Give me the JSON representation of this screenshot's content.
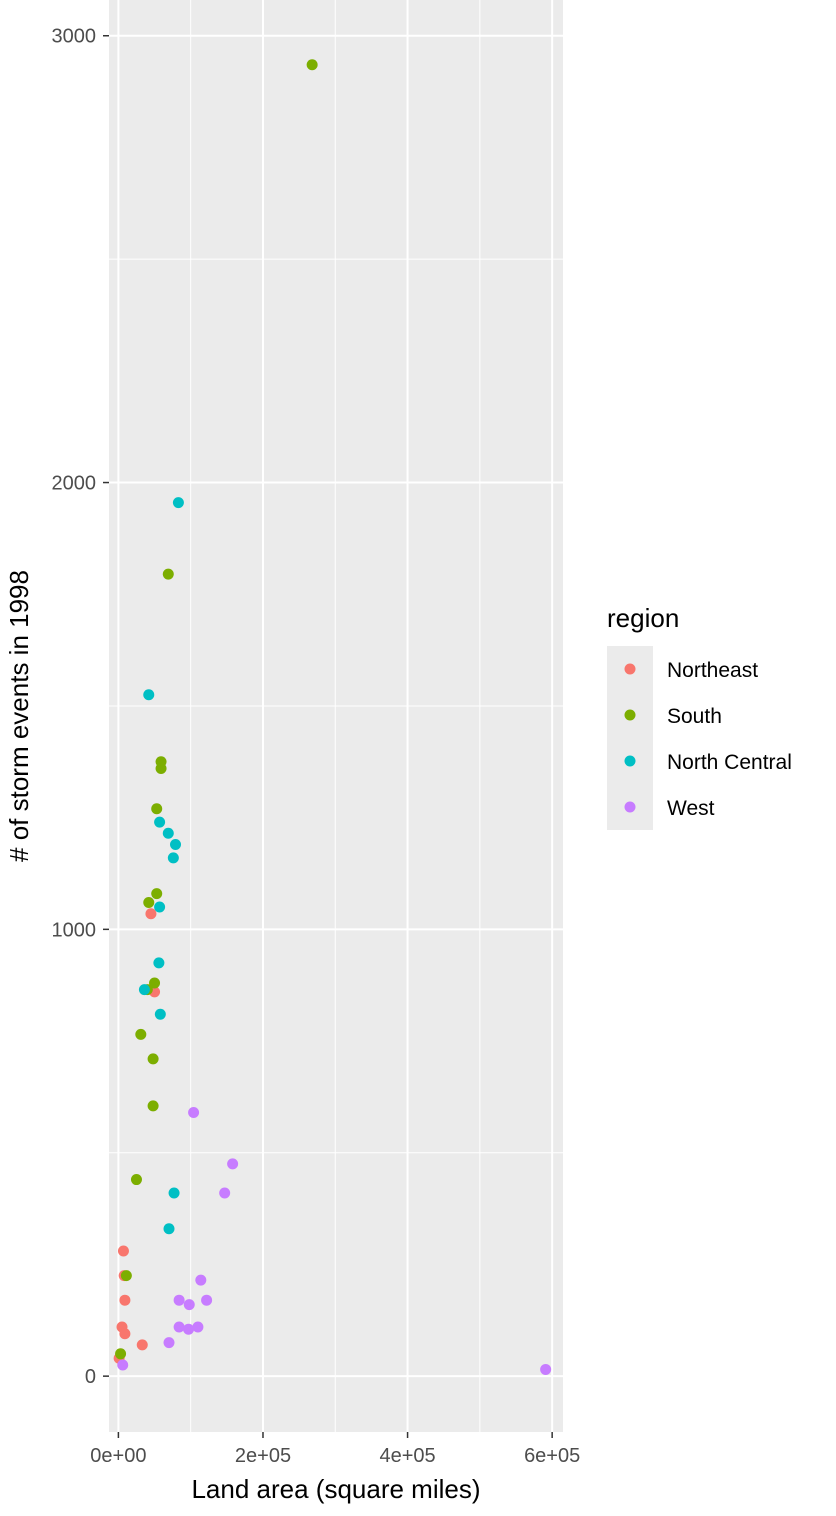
{
  "chart_data": {
    "type": "scatter",
    "title": "",
    "xlabel": "Land area (square miles)",
    "ylabel": "# of storm events in 1998",
    "xlim": [
      -13000,
      615000
    ],
    "ylim": [
      -125,
      3080
    ],
    "x_ticks": [
      0,
      200000,
      400000,
      600000
    ],
    "x_tick_labels": [
      "0e+00",
      "2e+05",
      "4e+05",
      "6e+05"
    ],
    "y_ticks": [
      0,
      1000,
      2000,
      3000
    ],
    "y_tick_labels": [
      "0",
      "1000",
      "2000",
      "3000"
    ],
    "grid": true,
    "legend": {
      "title": "region",
      "position": "right"
    },
    "series": [
      {
        "name": "Northeast",
        "color": "#F8766D",
        "points": [
          [
            45000,
            1035
          ],
          [
            50000,
            860
          ],
          [
            7000,
            280
          ],
          [
            8000,
            225
          ],
          [
            9000,
            170
          ],
          [
            5000,
            110
          ],
          [
            9000,
            95
          ],
          [
            33000,
            70
          ],
          [
            1000,
            40
          ]
        ]
      },
      {
        "name": "South",
        "color": "#7CAE00",
        "points": [
          [
            268000,
            2935
          ],
          [
            69000,
            1795
          ],
          [
            59000,
            1375
          ],
          [
            59000,
            1360
          ],
          [
            53000,
            1270
          ],
          [
            53000,
            1080
          ],
          [
            42000,
            1060
          ],
          [
            50000,
            880
          ],
          [
            40000,
            865
          ],
          [
            31000,
            765
          ],
          [
            48000,
            710
          ],
          [
            48000,
            605
          ],
          [
            25000,
            440
          ],
          [
            11000,
            225
          ],
          [
            3000,
            50
          ]
        ]
      },
      {
        "name": "North Central",
        "color": "#00BFC4",
        "points": [
          [
            83000,
            1955
          ],
          [
            42000,
            1525
          ],
          [
            57000,
            1240
          ],
          [
            69000,
            1215
          ],
          [
            79000,
            1190
          ],
          [
            76000,
            1160
          ],
          [
            57000,
            1050
          ],
          [
            56000,
            925
          ],
          [
            36000,
            865
          ],
          [
            58000,
            810
          ],
          [
            77000,
            410
          ],
          [
            70000,
            330
          ]
        ]
      },
      {
        "name": "West",
        "color": "#C77CFF",
        "points": [
          [
            104000,
            590
          ],
          [
            158000,
            475
          ],
          [
            147000,
            410
          ],
          [
            114000,
            215
          ],
          [
            84000,
            170
          ],
          [
            122000,
            170
          ],
          [
            98000,
            160
          ],
          [
            84000,
            110
          ],
          [
            110000,
            110
          ],
          [
            97000,
            105
          ],
          [
            70000,
            75
          ],
          [
            6000,
            25
          ],
          [
            591000,
            15
          ]
        ]
      }
    ]
  }
}
